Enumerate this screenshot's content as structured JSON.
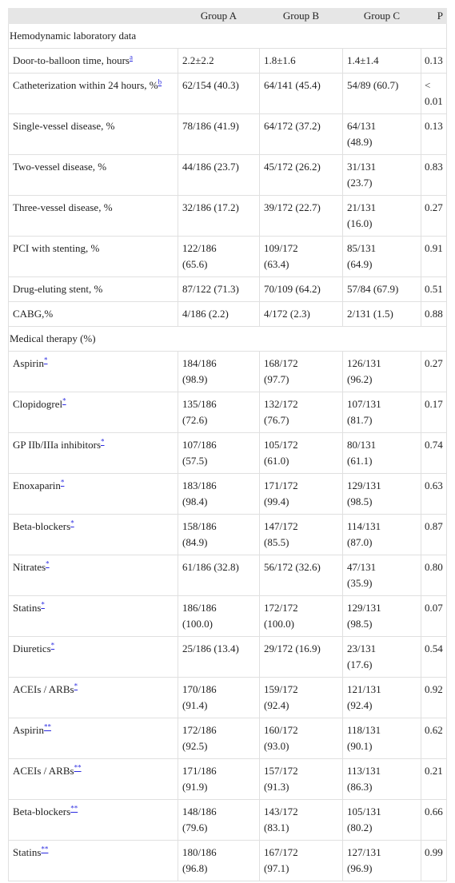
{
  "table": {
    "header": [
      "Group A",
      "Group B",
      "Group C",
      "P"
    ],
    "sections": [
      {
        "title": "Hemodynamic laboratory data",
        "rows": [
          {
            "label": "Door-to-balloon time, hours",
            "note": "a",
            "cells": [
              "2.2±2.2",
              "1.8±1.6",
              "1.4±1.4",
              "0.13"
            ]
          },
          {
            "label": "Catheterization within 24 hours, %",
            "note": "b",
            "cells": [
              "62/154 (40.3)",
              "64/141 (45.4)",
              "54/89 (60.7)",
              "< 0.01"
            ]
          },
          {
            "label": "Single-vessel disease, %",
            "cells": [
              "78/186 (41.9)",
              "64/172 (37.2)",
              "64/131 (48.9)",
              "0.13"
            ]
          },
          {
            "label": "Two-vessel disease, %",
            "cells": [
              "44/186 (23.7)",
              "45/172 (26.2)",
              "31/131 (23.7)",
              "0.83"
            ]
          },
          {
            "label": "Three-vessel disease, %",
            "cells": [
              "32/186 (17.2)",
              "39/172 (22.7)",
              "21/131 (16.0)",
              "0.27"
            ]
          },
          {
            "label": "PCI with stenting, %",
            "cells": [
              "122/186 (65.6)",
              "109/172 (63.4)",
              "85/131 (64.9)",
              "0.91"
            ]
          },
          {
            "label": "Drug-eluting stent, %",
            "cells": [
              "87/122 (71.3)",
              "70/109 (64.2)",
              "57/84 (67.9)",
              "0.51"
            ]
          },
          {
            "label": "CABG,%",
            "cells": [
              "4/186 (2.2)",
              "4/172 (2.3)",
              "2/131 (1.5)",
              "0.88"
            ]
          }
        ]
      },
      {
        "title": "Medical therapy (%)",
        "rows": [
          {
            "label": "Aspirin",
            "note": "*",
            "cells": [
              "184/186 (98.9)",
              "168/172 (97.7)",
              "126/131 (96.2)",
              "0.27"
            ]
          },
          {
            "label": "Clopidogrel",
            "note": "*",
            "cells": [
              "135/186 (72.6)",
              "132/172 (76.7)",
              "107/131 (81.7)",
              "0.17"
            ]
          },
          {
            "label": "GP IIb/IIIa inhibitors",
            "note": "*",
            "cells": [
              "107/186 (57.5)",
              "105/172 (61.0)",
              "80/131 (61.1)",
              "0.74"
            ]
          },
          {
            "label": "Enoxaparin",
            "note": "*",
            "cells": [
              "183/186 (98.4)",
              "171/172 (99.4)",
              "129/131 (98.5)",
              "0.63"
            ]
          },
          {
            "label": "Beta-blockers",
            "note": "*",
            "cells": [
              "158/186 (84.9)",
              "147/172 (85.5)",
              "114/131 (87.0)",
              "0.87"
            ]
          },
          {
            "label": "Nitrates",
            "note": "*",
            "cells": [
              "61/186 (32.8)",
              "56/172 (32.6)",
              "47/131 (35.9)",
              "0.80"
            ]
          },
          {
            "label": "Statins",
            "note": "*",
            "cells": [
              "186/186 (100.0)",
              "172/172 (100.0)",
              "129/131 (98.5)",
              "0.07"
            ]
          },
          {
            "label": "Diuretics",
            "note": "*",
            "cells": [
              "25/186 (13.4)",
              "29/172 (16.9)",
              "23/131 (17.6)",
              "0.54"
            ]
          },
          {
            "label": "ACEIs / ARBs",
            "note": "*",
            "cells": [
              "170/186 (91.4)",
              "159/172 (92.4)",
              "121/131 (92.4)",
              "0.92"
            ]
          },
          {
            "label": "Aspirin",
            "note": "**",
            "cells": [
              "172/186 (92.5)",
              "160/172 (93.0)",
              "118/131 (90.1)",
              "0.62"
            ]
          },
          {
            "label": "ACEIs / ARBs",
            "note": "**",
            "cells": [
              "171/186 (91.9)",
              "157/172 (91.3)",
              "113/131 (86.3)",
              "0.21"
            ]
          },
          {
            "label": "Beta-blockers",
            "note": "**",
            "cells": [
              "148/186 (79.6)",
              "143/172 (83.1)",
              "105/131 (80.2)",
              "0.66"
            ]
          },
          {
            "label": "Statins",
            "note": "**",
            "cells": [
              "180/186 (96.8)",
              "167/172 (97.1)",
              "127/131 (96.9)",
              "0.99"
            ]
          }
        ]
      }
    ]
  }
}
